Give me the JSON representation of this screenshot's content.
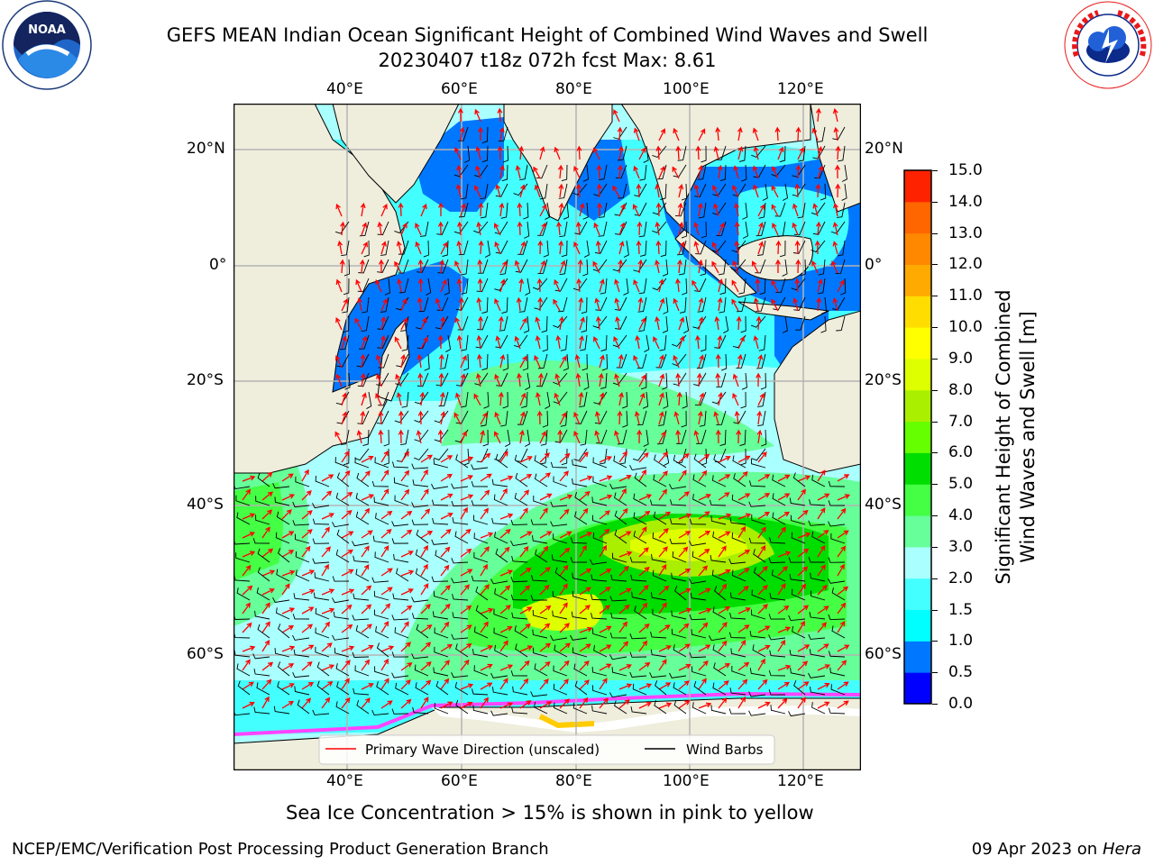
{
  "header": {
    "title_line1": "GEFS MEAN Indian Ocean Significant Height of Combined Wind Waves and Swell",
    "title_line2": "20230407 t18z 072h fcst   Max: 8.61",
    "noaa_logo_text": "NOAA",
    "noaa_logo_ring": "NATIONAL OCEANIC AND ATMOSPHERIC ADMINISTRATION · U.S. DEPARTMENT OF COMMERCE",
    "nws_logo_ring": "NATIONAL WEATHER SERVICE"
  },
  "map": {
    "lon_labels_top": [
      "40°E",
      "60°E",
      "80°E",
      "100°E",
      "120°E"
    ],
    "lon_labels_bottom": [
      "40°E",
      "60°E",
      "80°E",
      "100°E",
      "120°E"
    ],
    "lat_labels_left": [
      "20°N",
      "0°",
      "20°S",
      "40°S",
      "60°S"
    ],
    "lat_labels_right": [
      "20°N",
      "0°",
      "20°S",
      "40°S",
      "60°S"
    ],
    "legend": {
      "wave_direction": "Primary Wave Direction (unscaled)",
      "wind_barbs": "Wind Barbs"
    },
    "colors": {
      "land": "#efeddc",
      "grid": "#b4b4b4",
      "wave_arrow": "#ff0000",
      "barb": "#000000"
    }
  },
  "colorbar": {
    "label_line1": "Significant Height of Combined",
    "label_line2": "Wind Waves and Swell [m]",
    "ticks": [
      "15.0",
      "14.0",
      "13.0",
      "12.0",
      "11.0",
      "10.0",
      "9.0",
      "8.0",
      "7.0",
      "6.0",
      "5.0",
      "4.0",
      "3.0",
      "2.0",
      "1.5",
      "1.0",
      "0.5",
      "0.0"
    ],
    "colors_bottom_to_top": [
      "#0000ff",
      "#0077ff",
      "#00ffff",
      "#44ffff",
      "#aaffff",
      "#66ff99",
      "#44ff44",
      "#00dd00",
      "#66ff00",
      "#aaee00",
      "#ddff00",
      "#ffff00",
      "#ffdd00",
      "#ffaa00",
      "#ff8800",
      "#ff6600",
      "#ff2200"
    ]
  },
  "notes": {
    "sea_ice": "Sea Ice Concentration > 15% is shown in pink to yellow"
  },
  "footer": {
    "left": "NCEP/EMC/Verification Post Processing Product Generation Branch",
    "right_prefix": "09 Apr 2023 on ",
    "right_host": "Hera"
  }
}
